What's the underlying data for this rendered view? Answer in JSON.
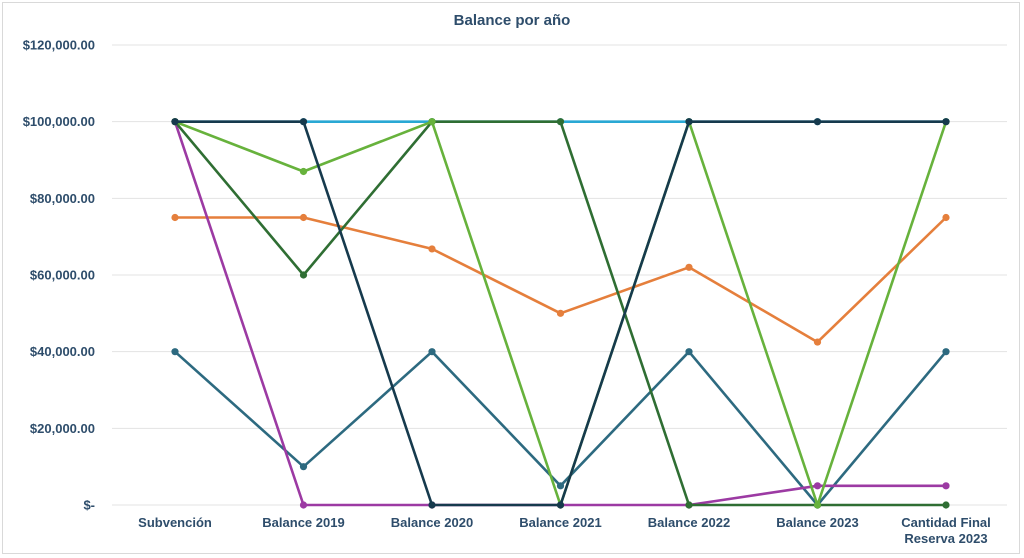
{
  "chart_data": {
    "type": "line",
    "title": "Balance por año",
    "categories": [
      "Subvención",
      "Balance 2019",
      "Balance 2020",
      "Balance 2021",
      "Balance 2022",
      "Balance 2023",
      [
        "Cantidad Final",
        "Reserva 2023"
      ]
    ],
    "ylim": [
      0,
      120000
    ],
    "yticks": [
      {
        "value": 0,
        "label": "$-"
      },
      {
        "value": 20000,
        "label": "$20,000.00"
      },
      {
        "value": 40000,
        "label": "$40,000.00"
      },
      {
        "value": 60000,
        "label": "$60,000.00"
      },
      {
        "value": 80000,
        "label": "$80,000.00"
      },
      {
        "value": 100000,
        "label": "$100,000.00"
      },
      {
        "value": 120000,
        "label": "$120,000.00"
      }
    ],
    "grid": true,
    "series": [
      {
        "color": "#29a8d4",
        "values": [
          100000,
          100000,
          100000,
          100000,
          100000,
          100000,
          100000
        ]
      },
      {
        "color": "#2d6a80",
        "values": [
          40000,
          10000,
          40000,
          5000,
          40000,
          0,
          40000
        ]
      },
      {
        "color": "#e57f3c",
        "values": [
          75000,
          75000,
          66800,
          50000,
          62000,
          42500,
          75000
        ]
      },
      {
        "color": "#9c3aa3",
        "values": [
          100000,
          0,
          0,
          0,
          0,
          5000,
          5000
        ]
      },
      {
        "color": "#2f6e33",
        "values": [
          100000,
          60000,
          100000,
          100000,
          0,
          0,
          0
        ]
      },
      {
        "color": "#67b23c",
        "values": [
          100000,
          87000,
          100000,
          0,
          100000,
          0,
          100000
        ]
      },
      {
        "color": "#163a4d",
        "values": [
          100000,
          100000,
          0,
          0,
          100000,
          100000,
          100000
        ]
      }
    ]
  }
}
